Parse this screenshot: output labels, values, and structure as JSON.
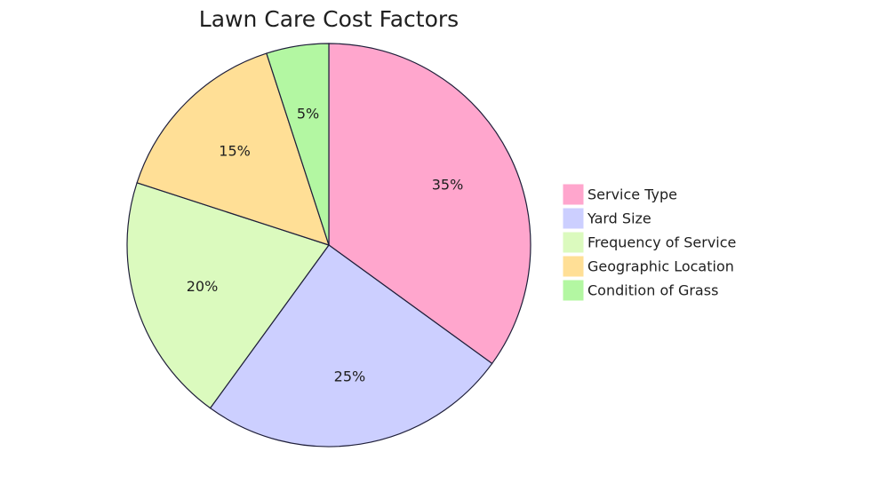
{
  "chart_data": {
    "type": "pie",
    "title": "Lawn Care Cost Factors",
    "slices": [
      {
        "name": "Service Type",
        "value": 35,
        "label": "35%",
        "color": "#ffa6cd"
      },
      {
        "name": "Yard Size",
        "value": 25,
        "label": "25%",
        "color": "#cccfff"
      },
      {
        "name": "Frequency of Service",
        "value": 20,
        "label": "20%",
        "color": "#dbfabe"
      },
      {
        "name": "Geographic Location",
        "value": 15,
        "label": "15%",
        "color": "#ffdf96"
      },
      {
        "name": "Condition of Grass",
        "value": 5,
        "label": "5%",
        "color": "#b3f7a2"
      }
    ],
    "legend": "right"
  }
}
